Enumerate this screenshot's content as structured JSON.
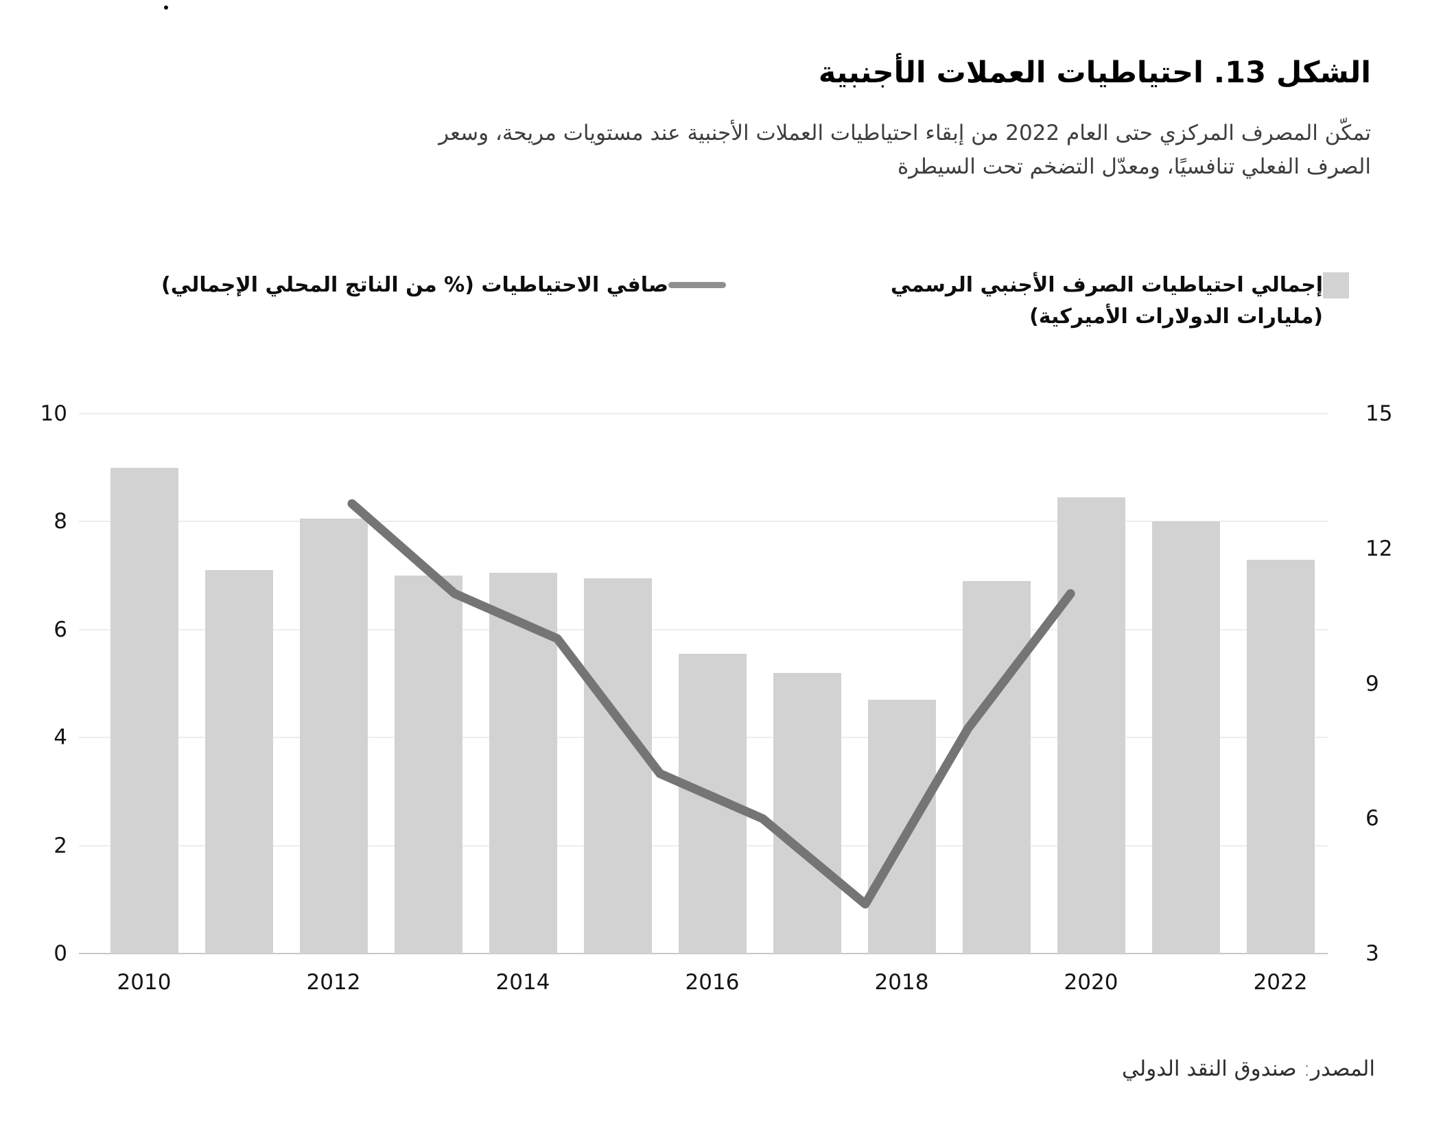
{
  "page": {
    "stray_mark": ""
  },
  "figure": {
    "title": "الشكل 13. احتياطيات العملات الأجنبية",
    "subtitle_lines": [
      "تمكّن المصرف المركزي حتى العام 2022 من إبقاء احتياطيات العملات الأجنبية عند مستويات مريحة، وسعر",
      "الصرف الفعلي تنافسيًا، ومعدّل التضخم تحت السيطرة"
    ],
    "source": "المصدر: صندوق النقد الدولي"
  },
  "legend": {
    "bars": {
      "label_line1": "إجمالي احتياطيات الصرف الأجنبي الرسمي",
      "label_line2": "(مليارات الدولارات الأميركية)",
      "swatch_color": "#d2d2d2"
    },
    "line": {
      "label": "صافي الاحتياطيات (% من الناتج المحلي الإجمالي)",
      "swatch_color": "#8f8f8f"
    }
  },
  "chart_data": {
    "type": "bar",
    "title": "الشكل 13. احتياطيات العملات الأجنبية",
    "categories": [
      2010,
      2011,
      2012,
      2013,
      2014,
      2015,
      2016,
      2017,
      2018,
      2019,
      2020,
      2021,
      2022
    ],
    "series": [
      {
        "name": "إجمالي احتياطيات الصرف الأجنبي الرسمي (مليارات الدولارات الأميركية)",
        "type": "bar",
        "axis": "left",
        "values": [
          9.0,
          7.1,
          8.05,
          7.0,
          7.05,
          6.95,
          5.55,
          5.2,
          4.7,
          6.9,
          8.45,
          8.0,
          7.3
        ]
      },
      {
        "name": "صافي الاحتياطيات (% من الناتج المحلي الإجمالي)",
        "type": "line",
        "axis": "right",
        "x": [
          2012,
          2013,
          2014,
          2015,
          2016,
          2017,
          2018,
          2019
        ],
        "values": [
          13.0,
          11.0,
          10.0,
          7.0,
          6.0,
          4.1,
          8.0,
          11.0
        ]
      }
    ],
    "left_axis": {
      "range": [
        0,
        10
      ],
      "ticks": [
        0,
        2,
        4,
        6,
        8,
        10
      ]
    },
    "right_axis": {
      "range": [
        3,
        15
      ],
      "ticks": [
        3,
        6,
        9,
        12,
        15
      ]
    },
    "x_tick_labels": [
      "2010",
      "2012",
      "2014",
      "2016",
      "2018",
      "2020",
      "2022"
    ],
    "grid": true,
    "legend_position": "top",
    "colors": {
      "bar": "#d2d2d2",
      "line": "#757575",
      "gridline": "#ededed",
      "baseline": "#c7c7c7"
    }
  }
}
